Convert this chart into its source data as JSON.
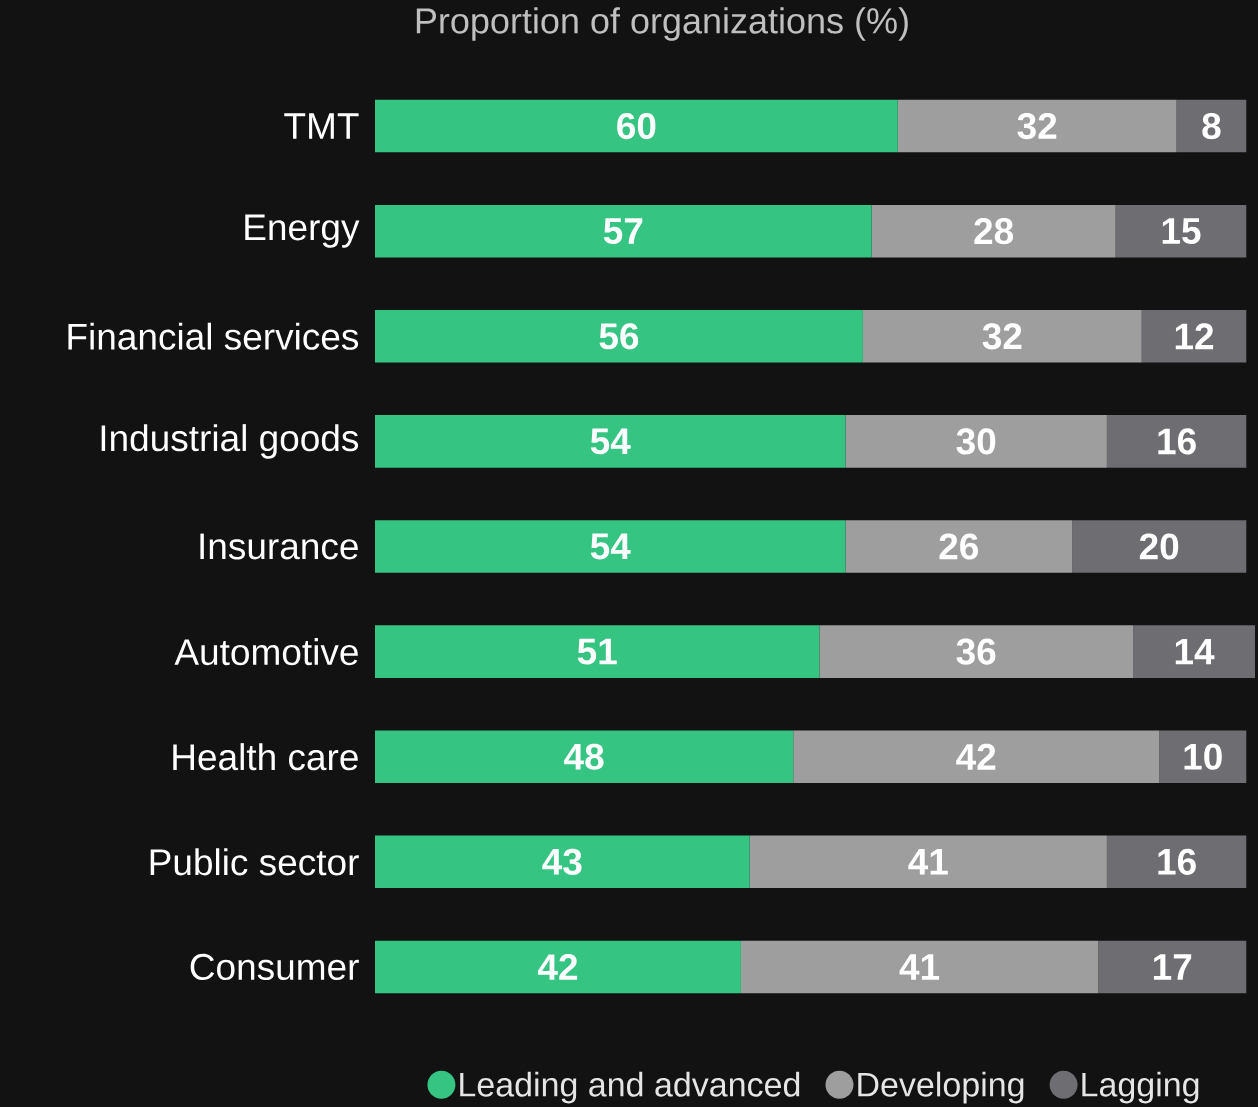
{
  "chart_data": {
    "type": "bar",
    "orientation": "horizontal",
    "stacked": true,
    "tick_labels": "y",
    "data_labels": true,
    "legend": "bottom",
    "title": "Proportion of organizations (%)",
    "categories": [
      "TMT",
      "Energy",
      "Financial services",
      "Industrial goods",
      "Insurance",
      "Automotive",
      "Health care",
      "Public sector",
      "Consumer"
    ],
    "series": [
      {
        "name": "Leading and advanced",
        "color": "#35c482",
        "values": [
          60,
          57,
          56,
          54,
          54,
          51,
          48,
          43,
          42
        ]
      },
      {
        "name": "Developing",
        "color": "#9e9e9e",
        "values": [
          32,
          28,
          32,
          30,
          26,
          36,
          42,
          41,
          41
        ]
      },
      {
        "name": "Lagging",
        "color": "#6d6d72",
        "values": [
          8,
          15,
          12,
          16,
          20,
          14,
          10,
          16,
          17
        ]
      }
    ]
  }
}
